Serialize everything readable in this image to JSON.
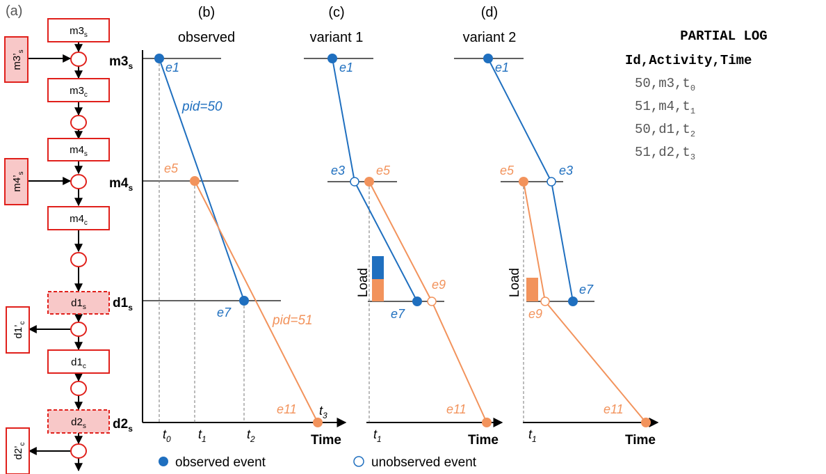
{
  "colors": {
    "blue": "#1f6fbf",
    "orange": "#f2935c",
    "red": "#e0201b",
    "pink": "#f8c8c8",
    "black": "#000000",
    "gray": "#777777"
  },
  "panel_labels": {
    "a": "(a)",
    "b": "(b)",
    "c": "(c)",
    "d": "(d)"
  },
  "panel_titles": {
    "b": "observed",
    "c": "variant 1",
    "d": "variant 2"
  },
  "petri": {
    "transitions": [
      "m3s",
      "m3c",
      "m4s",
      "m4c",
      "d1s",
      "d1c",
      "d2s"
    ],
    "side_transitions": [
      "m3's",
      "m4's",
      "d1'c",
      "d2'c"
    ]
  },
  "stations": {
    "m3": {
      "main": "m3",
      "sub": "s"
    },
    "m4": {
      "main": "m4",
      "sub": "s"
    },
    "d1": {
      "main": "d1",
      "sub": "s"
    },
    "d2": {
      "main": "d2",
      "sub": "s"
    }
  },
  "axis_label": "Time",
  "time_ticks": {
    "t0": "t",
    "t0s": "0",
    "t1": "t",
    "t1s": "1",
    "t2": "t",
    "t2s": "2",
    "t3": "t",
    "t3s": "3"
  },
  "events": {
    "e1": "e1",
    "e3": "e3",
    "e5": "e5",
    "e7": "e7",
    "e9": "e9",
    "e11": "e11"
  },
  "pids": {
    "p50": "pid=50",
    "p51": "pid=51"
  },
  "load_label": "Load",
  "legend": {
    "observed": "observed event",
    "unobserved": "unobserved event"
  },
  "log": {
    "title": "PARTIAL LOG",
    "header": "Id,Activity,Time",
    "rows": [
      {
        "text": "50,m3,t",
        "sub": "0"
      },
      {
        "text": "51,m4,t",
        "sub": "1"
      },
      {
        "text": "50,d1,t",
        "sub": "2"
      },
      {
        "text": "51,d2,t",
        "sub": "3"
      }
    ]
  }
}
